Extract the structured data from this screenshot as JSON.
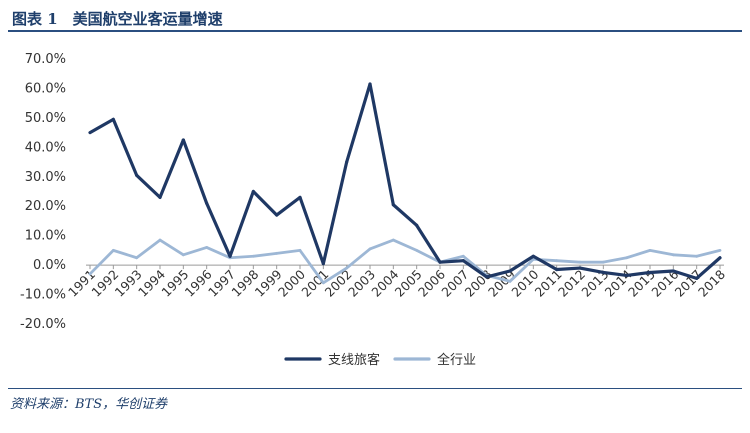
{
  "header": {
    "title": "图表 1　美国航空业客运量增速"
  },
  "footer": {
    "source": "资料来源：BTS，华创证券"
  },
  "colors": {
    "series_primary": "#1f3864",
    "series_secondary": "#9db7d5",
    "rule": "#2b4f80"
  },
  "chart_data": {
    "type": "line",
    "title": "美国航空业客运量增速",
    "xlabel": "",
    "ylabel": "",
    "ylim": [
      -20,
      70
    ],
    "yticks": [
      "70.0%",
      "60.0%",
      "50.0%",
      "40.0%",
      "30.0%",
      "20.0%",
      "10.0%",
      "0.0%",
      "-10.0%",
      "-20.0%"
    ],
    "grid": false,
    "legend_position": "bottom",
    "x": [
      "1991",
      "1992",
      "1993",
      "1994",
      "1995",
      "1996",
      "1997",
      "1998",
      "1999",
      "2000",
      "2001",
      "2002",
      "2003",
      "2004",
      "2005",
      "2006",
      "2007",
      "2008",
      "2009",
      "2010",
      "2011",
      "2012",
      "2013",
      "2014",
      "2015",
      "2016",
      "2017",
      "2018"
    ],
    "series": [
      {
        "name": "支线旅客",
        "color": "#1f3864",
        "values": [
          45.0,
          49.5,
          30.5,
          23.0,
          42.5,
          21.0,
          3.0,
          25.0,
          17.0,
          23.0,
          0.5,
          35.0,
          61.5,
          20.5,
          13.5,
          1.0,
          1.5,
          -4.0,
          -2.0,
          3.0,
          -1.5,
          -1.0,
          -2.5,
          -3.5,
          -2.5,
          -2.0,
          -4.5,
          2.5
        ]
      },
      {
        "name": "全行业",
        "color": "#9db7d5",
        "values": [
          -3.0,
          5.0,
          2.5,
          8.5,
          3.5,
          6.0,
          2.5,
          3.0,
          4.0,
          5.0,
          -6.0,
          -1.0,
          5.5,
          8.5,
          5.0,
          1.0,
          3.0,
          -3.5,
          -5.5,
          2.0,
          1.5,
          1.0,
          1.0,
          2.5,
          5.0,
          3.5,
          3.0,
          5.0
        ]
      }
    ]
  }
}
